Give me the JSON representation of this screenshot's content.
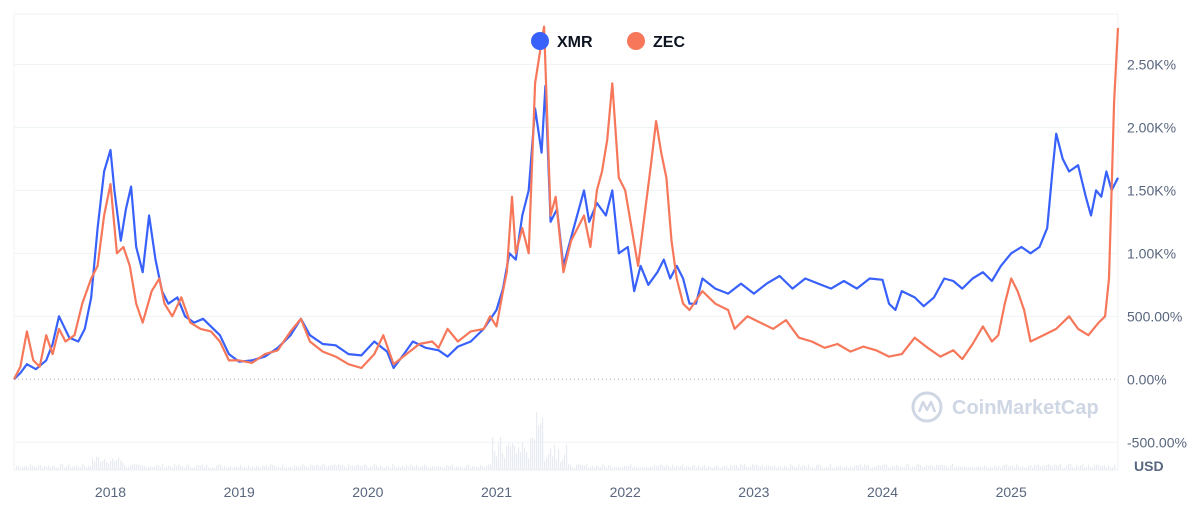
{
  "chart_data": {
    "type": "line",
    "title": "",
    "xlabel": "",
    "ylabel": "",
    "currency_label": "USD",
    "watermark": "CoinMarketCap",
    "legend_position": "top-center",
    "grid": true,
    "x_range": [
      2017.25,
      2025.83
    ],
    "ylim": [
      -720,
      2900
    ],
    "y_ticks": [
      {
        "value": 2500,
        "label": "2.50K%"
      },
      {
        "value": 2000,
        "label": "2.00K%"
      },
      {
        "value": 1500,
        "label": "1.50K%"
      },
      {
        "value": 1000,
        "label": "1.00K%"
      },
      {
        "value": 500,
        "label": "500.00%"
      },
      {
        "value": 0,
        "label": "0.00%"
      },
      {
        "value": -500,
        "label": "-500.00%"
      }
    ],
    "x_ticks": [
      {
        "value": 2018.0,
        "label": "2018"
      },
      {
        "value": 2019.0,
        "label": "2019"
      },
      {
        "value": 2020.0,
        "label": "2020"
      },
      {
        "value": 2021.0,
        "label": "2021"
      },
      {
        "value": 2022.0,
        "label": "2022"
      },
      {
        "value": 2023.0,
        "label": "2023"
      },
      {
        "value": 2024.0,
        "label": "2024"
      },
      {
        "value": 2025.0,
        "label": "2025"
      }
    ],
    "series": [
      {
        "name": "XMR",
        "color": "#3861fb",
        "points": [
          [
            2017.25,
            0
          ],
          [
            2017.3,
            50
          ],
          [
            2017.35,
            120
          ],
          [
            2017.42,
            80
          ],
          [
            2017.5,
            150
          ],
          [
            2017.55,
            280
          ],
          [
            2017.6,
            500
          ],
          [
            2017.68,
            330
          ],
          [
            2017.75,
            300
          ],
          [
            2017.8,
            400
          ],
          [
            2017.85,
            650
          ],
          [
            2017.9,
            1200
          ],
          [
            2017.95,
            1650
          ],
          [
            2018.0,
            1820
          ],
          [
            2018.03,
            1500
          ],
          [
            2018.08,
            1100
          ],
          [
            2018.12,
            1350
          ],
          [
            2018.16,
            1530
          ],
          [
            2018.2,
            1050
          ],
          [
            2018.25,
            850
          ],
          [
            2018.3,
            1300
          ],
          [
            2018.35,
            950
          ],
          [
            2018.4,
            700
          ],
          [
            2018.45,
            600
          ],
          [
            2018.52,
            650
          ],
          [
            2018.58,
            500
          ],
          [
            2018.65,
            450
          ],
          [
            2018.72,
            480
          ],
          [
            2018.78,
            420
          ],
          [
            2018.85,
            350
          ],
          [
            2018.92,
            200
          ],
          [
            2019.0,
            140
          ],
          [
            2019.1,
            150
          ],
          [
            2019.2,
            180
          ],
          [
            2019.3,
            250
          ],
          [
            2019.4,
            350
          ],
          [
            2019.48,
            480
          ],
          [
            2019.55,
            350
          ],
          [
            2019.65,
            280
          ],
          [
            2019.75,
            270
          ],
          [
            2019.85,
            200
          ],
          [
            2019.95,
            190
          ],
          [
            2020.05,
            300
          ],
          [
            2020.15,
            220
          ],
          [
            2020.2,
            90
          ],
          [
            2020.28,
            200
          ],
          [
            2020.35,
            300
          ],
          [
            2020.45,
            250
          ],
          [
            2020.55,
            230
          ],
          [
            2020.62,
            180
          ],
          [
            2020.7,
            260
          ],
          [
            2020.8,
            300
          ],
          [
            2020.9,
            400
          ],
          [
            2021.0,
            550
          ],
          [
            2021.05,
            720
          ],
          [
            2021.1,
            1000
          ],
          [
            2021.15,
            950
          ],
          [
            2021.2,
            1300
          ],
          [
            2021.25,
            1500
          ],
          [
            2021.3,
            2150
          ],
          [
            2021.35,
            1800
          ],
          [
            2021.38,
            2330
          ],
          [
            2021.42,
            1250
          ],
          [
            2021.47,
            1350
          ],
          [
            2021.52,
            900
          ],
          [
            2021.6,
            1200
          ],
          [
            2021.68,
            1500
          ],
          [
            2021.72,
            1250
          ],
          [
            2021.78,
            1400
          ],
          [
            2021.85,
            1300
          ],
          [
            2021.9,
            1500
          ],
          [
            2021.95,
            1000
          ],
          [
            2022.02,
            1050
          ],
          [
            2022.07,
            700
          ],
          [
            2022.12,
            900
          ],
          [
            2022.18,
            750
          ],
          [
            2022.25,
            850
          ],
          [
            2022.3,
            950
          ],
          [
            2022.35,
            800
          ],
          [
            2022.4,
            900
          ],
          [
            2022.45,
            800
          ],
          [
            2022.5,
            600
          ],
          [
            2022.55,
            600
          ],
          [
            2022.6,
            800
          ],
          [
            2022.7,
            720
          ],
          [
            2022.8,
            680
          ],
          [
            2022.9,
            760
          ],
          [
            2023.0,
            680
          ],
          [
            2023.1,
            760
          ],
          [
            2023.2,
            820
          ],
          [
            2023.3,
            720
          ],
          [
            2023.4,
            800
          ],
          [
            2023.5,
            760
          ],
          [
            2023.6,
            720
          ],
          [
            2023.7,
            780
          ],
          [
            2023.8,
            720
          ],
          [
            2023.9,
            800
          ],
          [
            2024.0,
            790
          ],
          [
            2024.05,
            600
          ],
          [
            2024.1,
            550
          ],
          [
            2024.15,
            700
          ],
          [
            2024.25,
            650
          ],
          [
            2024.32,
            580
          ],
          [
            2024.4,
            650
          ],
          [
            2024.48,
            800
          ],
          [
            2024.55,
            780
          ],
          [
            2024.62,
            720
          ],
          [
            2024.7,
            800
          ],
          [
            2024.78,
            850
          ],
          [
            2024.85,
            780
          ],
          [
            2024.92,
            900
          ],
          [
            2025.0,
            1000
          ],
          [
            2025.08,
            1050
          ],
          [
            2025.15,
            1000
          ],
          [
            2025.22,
            1050
          ],
          [
            2025.28,
            1200
          ],
          [
            2025.32,
            1650
          ],
          [
            2025.35,
            1950
          ],
          [
            2025.4,
            1750
          ],
          [
            2025.45,
            1650
          ],
          [
            2025.52,
            1700
          ],
          [
            2025.58,
            1450
          ],
          [
            2025.62,
            1300
          ],
          [
            2025.66,
            1500
          ],
          [
            2025.7,
            1450
          ],
          [
            2025.74,
            1650
          ],
          [
            2025.78,
            1500
          ],
          [
            2025.83,
            1600
          ]
        ]
      },
      {
        "name": "ZEC",
        "color": "#f6775a",
        "points": [
          [
            2017.25,
            0
          ],
          [
            2017.3,
            100
          ],
          [
            2017.35,
            380
          ],
          [
            2017.4,
            150
          ],
          [
            2017.45,
            100
          ],
          [
            2017.5,
            350
          ],
          [
            2017.55,
            200
          ],
          [
            2017.6,
            400
          ],
          [
            2017.65,
            300
          ],
          [
            2017.72,
            350
          ],
          [
            2017.78,
            600
          ],
          [
            2017.85,
            800
          ],
          [
            2017.9,
            900
          ],
          [
            2017.95,
            1300
          ],
          [
            2018.0,
            1550
          ],
          [
            2018.05,
            1000
          ],
          [
            2018.1,
            1050
          ],
          [
            2018.15,
            900
          ],
          [
            2018.2,
            600
          ],
          [
            2018.25,
            450
          ],
          [
            2018.32,
            700
          ],
          [
            2018.38,
            800
          ],
          [
            2018.42,
            600
          ],
          [
            2018.48,
            500
          ],
          [
            2018.55,
            650
          ],
          [
            2018.62,
            450
          ],
          [
            2018.7,
            400
          ],
          [
            2018.78,
            380
          ],
          [
            2018.85,
            300
          ],
          [
            2018.92,
            150
          ],
          [
            2019.0,
            150
          ],
          [
            2019.1,
            130
          ],
          [
            2019.2,
            200
          ],
          [
            2019.3,
            230
          ],
          [
            2019.4,
            380
          ],
          [
            2019.48,
            480
          ],
          [
            2019.55,
            300
          ],
          [
            2019.65,
            220
          ],
          [
            2019.75,
            180
          ],
          [
            2019.85,
            120
          ],
          [
            2019.95,
            90
          ],
          [
            2020.05,
            200
          ],
          [
            2020.12,
            350
          ],
          [
            2020.2,
            120
          ],
          [
            2020.3,
            200
          ],
          [
            2020.4,
            280
          ],
          [
            2020.5,
            300
          ],
          [
            2020.55,
            250
          ],
          [
            2020.62,
            400
          ],
          [
            2020.7,
            300
          ],
          [
            2020.8,
            380
          ],
          [
            2020.9,
            400
          ],
          [
            2020.95,
            500
          ],
          [
            2021.0,
            420
          ],
          [
            2021.05,
            700
          ],
          [
            2021.08,
            850
          ],
          [
            2021.12,
            1450
          ],
          [
            2021.15,
            1000
          ],
          [
            2021.2,
            1200
          ],
          [
            2021.25,
            1000
          ],
          [
            2021.3,
            2350
          ],
          [
            2021.33,
            2550
          ],
          [
            2021.37,
            2800
          ],
          [
            2021.42,
            1300
          ],
          [
            2021.46,
            1450
          ],
          [
            2021.52,
            850
          ],
          [
            2021.58,
            1100
          ],
          [
            2021.63,
            1200
          ],
          [
            2021.68,
            1300
          ],
          [
            2021.73,
            1050
          ],
          [
            2021.78,
            1500
          ],
          [
            2021.82,
            1650
          ],
          [
            2021.86,
            1900
          ],
          [
            2021.9,
            2350
          ],
          [
            2021.95,
            1600
          ],
          [
            2022.0,
            1500
          ],
          [
            2022.05,
            1200
          ],
          [
            2022.1,
            900
          ],
          [
            2022.15,
            1300
          ],
          [
            2022.2,
            1700
          ],
          [
            2022.24,
            2050
          ],
          [
            2022.28,
            1800
          ],
          [
            2022.32,
            1600
          ],
          [
            2022.36,
            1100
          ],
          [
            2022.4,
            800
          ],
          [
            2022.45,
            600
          ],
          [
            2022.5,
            550
          ],
          [
            2022.6,
            700
          ],
          [
            2022.7,
            600
          ],
          [
            2022.8,
            550
          ],
          [
            2022.85,
            400
          ],
          [
            2022.95,
            500
          ],
          [
            2023.05,
            450
          ],
          [
            2023.15,
            400
          ],
          [
            2023.25,
            470
          ],
          [
            2023.35,
            330
          ],
          [
            2023.45,
            300
          ],
          [
            2023.55,
            250
          ],
          [
            2023.65,
            280
          ],
          [
            2023.75,
            220
          ],
          [
            2023.85,
            260
          ],
          [
            2023.95,
            230
          ],
          [
            2024.05,
            180
          ],
          [
            2024.15,
            200
          ],
          [
            2024.25,
            330
          ],
          [
            2024.35,
            250
          ],
          [
            2024.45,
            180
          ],
          [
            2024.55,
            230
          ],
          [
            2024.62,
            160
          ],
          [
            2024.7,
            280
          ],
          [
            2024.78,
            420
          ],
          [
            2024.85,
            300
          ],
          [
            2024.9,
            350
          ],
          [
            2024.95,
            600
          ],
          [
            2025.0,
            800
          ],
          [
            2025.05,
            700
          ],
          [
            2025.1,
            550
          ],
          [
            2025.15,
            300
          ],
          [
            2025.25,
            350
          ],
          [
            2025.35,
            400
          ],
          [
            2025.45,
            500
          ],
          [
            2025.52,
            400
          ],
          [
            2025.6,
            350
          ],
          [
            2025.68,
            450
          ],
          [
            2025.73,
            500
          ],
          [
            2025.76,
            800
          ],
          [
            2025.78,
            1500
          ],
          [
            2025.8,
            2200
          ],
          [
            2025.82,
            2600
          ],
          [
            2025.83,
            2790
          ]
        ]
      }
    ]
  }
}
